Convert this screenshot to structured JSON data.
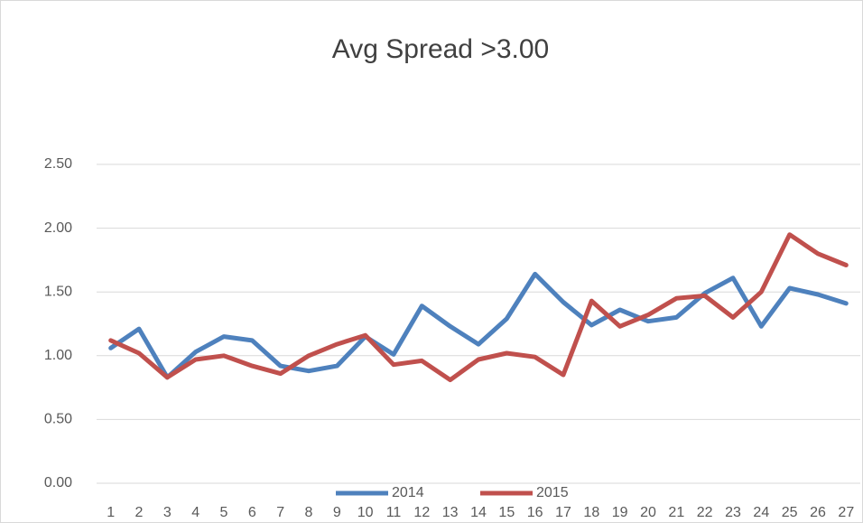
{
  "chart_data": {
    "type": "line",
    "title": "Avg Spread >3.00",
    "categories": [
      "1",
      "2",
      "3",
      "4",
      "5",
      "6",
      "7",
      "8",
      "9",
      "10",
      "11",
      "12",
      "13",
      "14",
      "15",
      "16",
      "17",
      "18",
      "19",
      "20",
      "21",
      "22",
      "23",
      "24",
      "25",
      "26",
      "27"
    ],
    "series": [
      {
        "name": "2014",
        "color": "#4e81bd",
        "values": [
          1.06,
          1.21,
          0.83,
          1.03,
          1.15,
          1.12,
          0.92,
          0.88,
          0.92,
          1.15,
          1.01,
          1.39,
          1.23,
          1.09,
          1.29,
          1.64,
          1.42,
          1.24,
          1.36,
          1.27,
          1.3,
          1.49,
          1.61,
          1.23,
          1.53,
          1.48,
          1.41
        ]
      },
      {
        "name": "2015",
        "color": "#c0504d",
        "values": [
          1.12,
          1.02,
          0.83,
          0.97,
          1.0,
          0.92,
          0.86,
          1.0,
          1.09,
          1.16,
          0.93,
          0.96,
          0.81,
          0.97,
          1.02,
          0.99,
          0.85,
          1.43,
          1.23,
          1.32,
          1.45,
          1.47,
          1.3,
          1.5,
          1.95,
          1.8,
          1.71
        ]
      }
    ],
    "ylim": [
      0,
      2.5
    ],
    "yticks": [
      {
        "value": 0,
        "label": "0.00"
      },
      {
        "value": 0.5,
        "label": "0.50"
      },
      {
        "value": 1,
        "label": "1.00"
      },
      {
        "value": 1.5,
        "label": "1.50"
      },
      {
        "value": 2,
        "label": "2.00"
      },
      {
        "value": 2.5,
        "label": "2.50"
      }
    ],
    "grid": true,
    "legend": "bottom"
  }
}
